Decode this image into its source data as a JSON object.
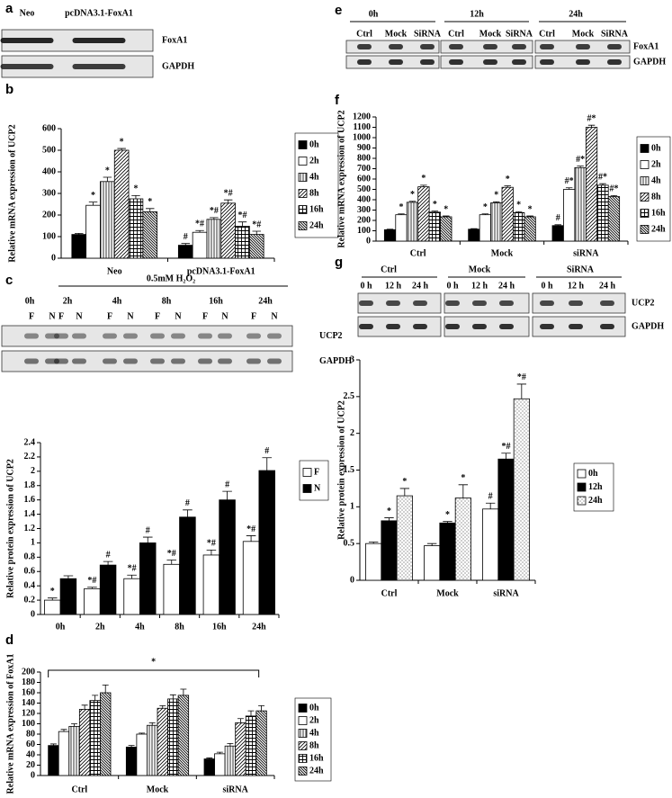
{
  "blots": [
    {
      "panel": "a",
      "lanes": [
        "Neo",
        "pcDNA3.1-FoxA1"
      ],
      "rows": [
        "FoxA1",
        "GAPDH"
      ]
    },
    {
      "panel": "c",
      "treatment": "0.5mM H₂O₂",
      "groups": [
        "0h",
        "2h",
        "4h",
        "8h",
        "16h",
        "24h"
      ],
      "lanes": [
        "F",
        "N",
        "F",
        "N",
        "F",
        "N",
        "F",
        "N",
        "F",
        "N",
        "F",
        "N"
      ],
      "rows": [
        "UCP2",
        "GAPDH"
      ]
    },
    {
      "panel": "e",
      "groups": [
        "0h",
        "12h",
        "24h"
      ],
      "lanes": [
        "Ctrl",
        "Mock",
        "SiRNA",
        "Ctrl",
        "Mock",
        "SiRNA",
        "Ctrl",
        "Mock",
        "SiRNA"
      ],
      "rows": [
        "FoxA1",
        "GAPDH"
      ]
    },
    {
      "panel": "g",
      "groups": [
        "Ctrl",
        "Mock",
        "SiRNA"
      ],
      "lanes": [
        "0 h",
        "12 h",
        "24 h",
        "0 h",
        "12 h",
        "24 h",
        "0 h",
        "12 h",
        "24 h"
      ],
      "rows": [
        "UCP2",
        "GAPDH"
      ]
    }
  ],
  "chart_data": [
    {
      "type": "bar",
      "panel": "b",
      "ylabel": "Relative mRNA expression of UCP2",
      "categories": [
        "Neo",
        "pcDNA3.1-FoxA1"
      ],
      "ylim": [
        0,
        600
      ],
      "yticks": [
        0,
        100,
        200,
        300,
        400,
        500,
        600
      ],
      "legend": "right",
      "series": [
        {
          "name": "0h",
          "color": "#000000",
          "pattern": "solid",
          "values": [
            110,
            60
          ],
          "errors": [
            5,
            8
          ],
          "annotations": [
            null,
            "#"
          ]
        },
        {
          "name": "2h",
          "color": "#000000",
          "pattern": "none",
          "values": [
            245,
            120
          ],
          "errors": [
            15,
            8
          ],
          "annotations": [
            "*",
            "*#"
          ]
        },
        {
          "name": "4h",
          "color": "#000000",
          "pattern": "vertical",
          "values": [
            355,
            180
          ],
          "errors": [
            20,
            8
          ],
          "annotations": [
            "*",
            "*#"
          ]
        },
        {
          "name": "8h",
          "color": "#000000",
          "pattern": "diagonal",
          "values": [
            500,
            255
          ],
          "errors": [
            8,
            15
          ],
          "annotations": [
            "*",
            "*#"
          ]
        },
        {
          "name": "16h",
          "color": "#000000",
          "pattern": "grid",
          "values": [
            275,
            148
          ],
          "errors": [
            15,
            20
          ],
          "annotations": [
            "*",
            "*#"
          ]
        },
        {
          "name": "24h",
          "color": "#000000",
          "pattern": "backdiagonal",
          "values": [
            215,
            110
          ],
          "errors": [
            15,
            15
          ],
          "annotations": [
            "*",
            "*#"
          ]
        }
      ]
    },
    {
      "type": "bar",
      "ylabel": "Relative protein expression of UCP2",
      "categories": [
        "0h",
        "2h",
        "4h",
        "8h",
        "16h",
        "24h"
      ],
      "ylim": [
        0,
        2.4
      ],
      "yticks": [
        0,
        0.2,
        0.4,
        0.6,
        0.8,
        1,
        1.2,
        1.4,
        1.6,
        1.8,
        2,
        2.2,
        2.4
      ],
      "legend": "right",
      "series": [
        {
          "name": "F",
          "color": "#000000",
          "pattern": "none",
          "values": [
            0.2,
            0.36,
            0.5,
            0.7,
            0.83,
            1.02
          ],
          "errors": [
            0.03,
            0.02,
            0.05,
            0.06,
            0.07,
            0.08
          ],
          "annotations": [
            "*",
            "*#",
            "*#",
            "*#",
            "*#",
            "*#"
          ]
        },
        {
          "name": "N",
          "color": "#000000",
          "pattern": "solid",
          "values": [
            0.5,
            0.69,
            1.0,
            1.36,
            1.6,
            2.01
          ],
          "errors": [
            0.04,
            0.05,
            0.08,
            0.1,
            0.12,
            0.18
          ],
          "annotations": [
            null,
            "#",
            "#",
            "#",
            "#",
            "#"
          ]
        }
      ]
    },
    {
      "type": "bar",
      "panel": "d",
      "ylabel": "Relative mRNA expression of FoxA1",
      "annotation": "*",
      "categories": [
        "Ctrl",
        "Mock",
        "siRNA"
      ],
      "ylim": [
        0,
        200
      ],
      "yticks": [
        0,
        20,
        40,
        60,
        80,
        100,
        120,
        140,
        160,
        180,
        200
      ],
      "legend": "right",
      "series": [
        {
          "name": "0h",
          "color": "#000000",
          "pattern": "solid",
          "values": [
            58,
            55,
            32
          ],
          "errors": [
            3,
            3,
            2
          ]
        },
        {
          "name": "2h",
          "color": "#000000",
          "pattern": "none",
          "values": [
            85,
            80,
            42
          ],
          "errors": [
            4,
            2,
            3
          ]
        },
        {
          "name": "4h",
          "color": "#000000",
          "pattern": "vertical",
          "values": [
            95,
            97,
            57
          ],
          "errors": [
            5,
            5,
            5
          ]
        },
        {
          "name": "8h",
          "color": "#000000",
          "pattern": "diagonal",
          "values": [
            128,
            130,
            102
          ],
          "errors": [
            8,
            5,
            8
          ]
        },
        {
          "name": "16h",
          "color": "#000000",
          "pattern": "grid",
          "values": [
            145,
            148,
            115
          ],
          "errors": [
            10,
            8,
            10
          ]
        },
        {
          "name": "24h",
          "color": "#000000",
          "pattern": "backdiagonal",
          "values": [
            160,
            155,
            125
          ],
          "errors": [
            15,
            12,
            10
          ]
        }
      ]
    },
    {
      "type": "bar",
      "panel": "f",
      "ylabel": "Relative mRNA expression of UCP2",
      "categories": [
        "Ctrl",
        "Mock",
        "siRNA"
      ],
      "ylim": [
        0,
        1200
      ],
      "yticks": [
        0,
        100,
        200,
        300,
        400,
        500,
        600,
        700,
        800,
        900,
        1000,
        1100,
        1200
      ],
      "legend": "right",
      "series": [
        {
          "name": "0h",
          "color": "#000000",
          "pattern": "solid",
          "values": [
            110,
            115,
            150
          ],
          "errors": [
            5,
            5,
            8
          ],
          "annotations": [
            null,
            null,
            "#"
          ]
        },
        {
          "name": "2h",
          "color": "#000000",
          "pattern": "none",
          "values": [
            255,
            255,
            500
          ],
          "errors": [
            8,
            8,
            15
          ],
          "annotations": [
            "*",
            "*",
            "#*"
          ]
        },
        {
          "name": "4h",
          "color": "#000000",
          "pattern": "vertical",
          "values": [
            375,
            370,
            710
          ],
          "errors": [
            10,
            10,
            15
          ],
          "annotations": [
            "*",
            "*",
            "#*"
          ]
        },
        {
          "name": "8h",
          "color": "#000000",
          "pattern": "diagonal",
          "values": [
            525,
            520,
            1100
          ],
          "errors": [
            15,
            15,
            20
          ],
          "annotations": [
            "*",
            "*",
            "#*"
          ]
        },
        {
          "name": "16h",
          "color": "#000000",
          "pattern": "grid",
          "values": [
            280,
            275,
            540
          ],
          "errors": [
            10,
            10,
            15
          ],
          "annotations": [
            "*",
            "*",
            "#*"
          ]
        },
        {
          "name": "24h",
          "color": "#000000",
          "pattern": "backdiagonal",
          "values": [
            235,
            235,
            430
          ],
          "errors": [
            8,
            8,
            10
          ],
          "annotations": [
            "*",
            "*",
            "#*"
          ]
        }
      ]
    },
    {
      "type": "bar",
      "ylabel": "Relative protein expression of UCP2",
      "categories": [
        "Ctrl",
        "Mock",
        "siRNA"
      ],
      "ylim": [
        0,
        3
      ],
      "yticks": [
        0,
        0.5,
        1,
        1.5,
        2,
        2.5,
        3
      ],
      "legend": "right",
      "series": [
        {
          "name": "0h",
          "color": "#000000",
          "pattern": "none",
          "values": [
            0.5,
            0.47,
            0.97
          ],
          "errors": [
            0.02,
            0.03,
            0.08
          ],
          "annotations": [
            null,
            null,
            "#"
          ]
        },
        {
          "name": "12h",
          "color": "#000000",
          "pattern": "solid",
          "values": [
            0.81,
            0.78,
            1.65
          ],
          "errors": [
            0.04,
            0.02,
            0.08
          ],
          "annotations": [
            "*",
            "*",
            "*#"
          ]
        },
        {
          "name": "24h",
          "color": "#000000",
          "pattern": "dots",
          "values": [
            1.15,
            1.12,
            2.47
          ],
          "errors": [
            0.1,
            0.18,
            0.2
          ],
          "annotations": [
            "*",
            "*",
            "*#"
          ]
        }
      ]
    }
  ]
}
